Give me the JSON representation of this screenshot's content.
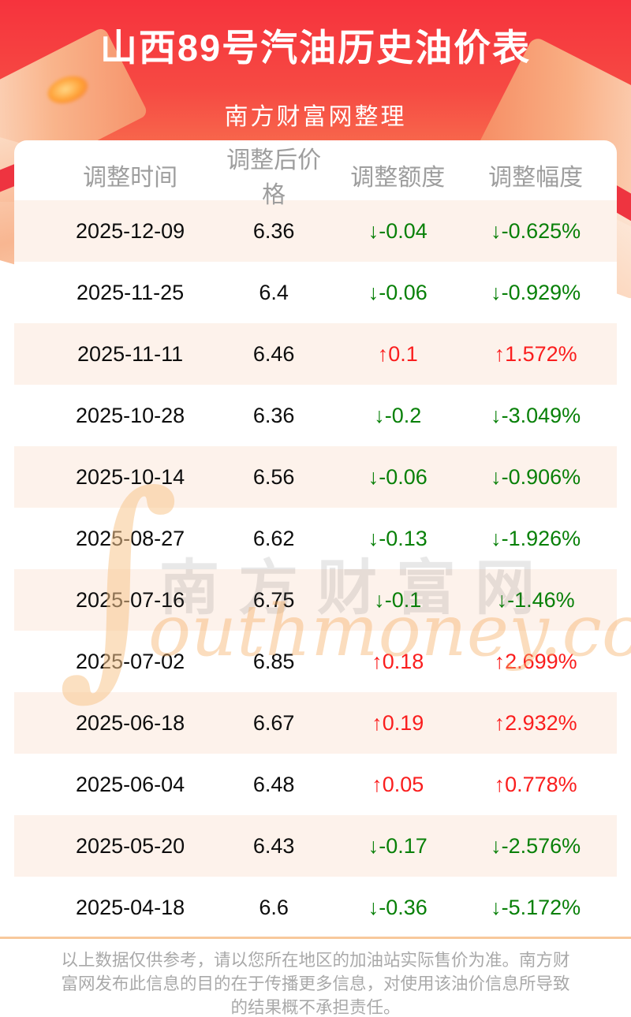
{
  "header": {
    "title": "山西89号汽油历史油价表",
    "subtitle": "南方财富网整理"
  },
  "table": {
    "columns": [
      "调整时间",
      "调整后价格",
      "调整额度",
      "调整幅度"
    ],
    "rows": [
      {
        "date": "2025-12-09",
        "price": "6.36",
        "arrow": "↓",
        "change": "-0.04",
        "change_pct": "-0.625%",
        "direction": "down"
      },
      {
        "date": "2025-11-25",
        "price": "6.4",
        "arrow": "↓",
        "change": "-0.06",
        "change_pct": "-0.929%",
        "direction": "down"
      },
      {
        "date": "2025-11-11",
        "price": "6.46",
        "arrow": "↑",
        "change": "0.1",
        "change_pct": "1.572%",
        "direction": "up"
      },
      {
        "date": "2025-10-28",
        "price": "6.36",
        "arrow": "↓",
        "change": "-0.2",
        "change_pct": "-3.049%",
        "direction": "down"
      },
      {
        "date": "2025-10-14",
        "price": "6.56",
        "arrow": "↓",
        "change": "-0.06",
        "change_pct": "-0.906%",
        "direction": "down"
      },
      {
        "date": "2025-08-27",
        "price": "6.62",
        "arrow": "↓",
        "change": "-0.13",
        "change_pct": "-1.926%",
        "direction": "down"
      },
      {
        "date": "2025-07-16",
        "price": "6.75",
        "arrow": "↓",
        "change": "-0.1",
        "change_pct": "-1.46%",
        "direction": "down"
      },
      {
        "date": "2025-07-02",
        "price": "6.85",
        "arrow": "↑",
        "change": "0.18",
        "change_pct": "2.699%",
        "direction": "up"
      },
      {
        "date": "2025-06-18",
        "price": "6.67",
        "arrow": "↑",
        "change": "0.19",
        "change_pct": "2.932%",
        "direction": "up"
      },
      {
        "date": "2025-06-04",
        "price": "6.48",
        "arrow": "↑",
        "change": "0.05",
        "change_pct": "0.778%",
        "direction": "up"
      },
      {
        "date": "2025-05-20",
        "price": "6.43",
        "arrow": "↓",
        "change": "-0.17",
        "change_pct": "-2.576%",
        "direction": "down"
      },
      {
        "date": "2025-04-18",
        "price": "6.6",
        "arrow": "↓",
        "change": "-0.36",
        "change_pct": "-5.172%",
        "direction": "down"
      }
    ]
  },
  "watermark": {
    "s_glyph": "∫",
    "latin": "outhmoney.com",
    "cjk": "南方财富网"
  },
  "footer": {
    "disclaimer": "以上数据仅供参考，请以您所在地区的加油站实际售价为准。南方财富网发布此信息的目的在于传播更多信息，对使用该油价信息所导致的结果概不承担责任。"
  },
  "colors": {
    "up": "#fa1e1e",
    "down": "#088008",
    "stripe": "#fdf2eb",
    "divider": "#f8c99c",
    "header_gradient_top": "#f6333d",
    "header_gradient_bottom": "#f98d62",
    "header_text_gray": "#9e9e9e"
  }
}
